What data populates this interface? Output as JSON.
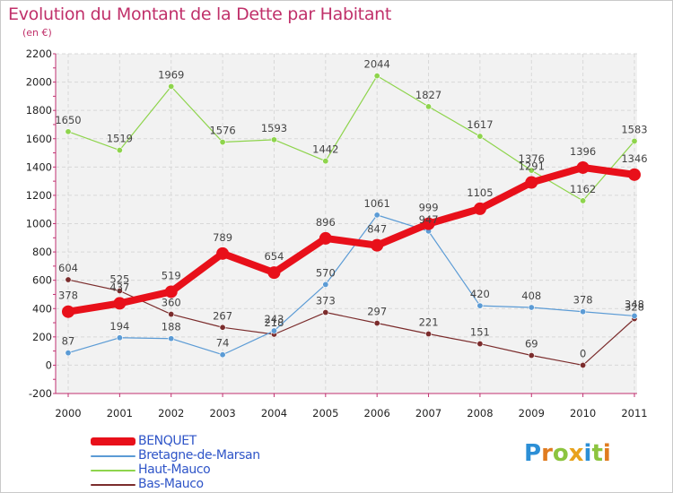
{
  "header": {
    "title": "Evolution du Montant de la Dette par Habitant",
    "subtitle": "(en €)"
  },
  "logo": {
    "letters": [
      {
        "char": "P",
        "color": "#2c8fd6"
      },
      {
        "char": "r",
        "color": "#e07b1f"
      },
      {
        "char": "o",
        "color": "#8cc43f"
      },
      {
        "char": "x",
        "color": "#e8a21c"
      },
      {
        "char": "i",
        "color": "#2c8fd6"
      },
      {
        "char": "t",
        "color": "#8cc43f"
      },
      {
        "char": "i",
        "color": "#e07b1f"
      }
    ]
  },
  "chart_data": {
    "type": "line",
    "title": "Evolution du Montant de la Dette par Habitant",
    "subtitle": "(en €)",
    "xlabel": "",
    "ylabel": "",
    "categories": [
      "2000",
      "2001",
      "2002",
      "2003",
      "2004",
      "2005",
      "2006",
      "2007",
      "2008",
      "2009",
      "2010",
      "2011"
    ],
    "ylim": [
      -200,
      2200
    ],
    "yticks": [
      -200,
      0,
      200,
      400,
      600,
      800,
      1000,
      1200,
      1400,
      1600,
      1800,
      2000,
      2200
    ],
    "grid": true,
    "legend_position": "bottom-left",
    "series": [
      {
        "name": "BENQUET",
        "color": "#e8101a",
        "values": [
          378,
          437,
          519,
          789,
          654,
          896,
          847,
          999,
          1105,
          1291,
          1396,
          1346
        ]
      },
      {
        "name": "Bretagne-de-Marsan",
        "color": "#5b9bd5",
        "values": [
          87,
          194,
          188,
          74,
          243,
          570,
          1061,
          947,
          420,
          408,
          378,
          348
        ]
      },
      {
        "name": "Haut-Mauco",
        "color": "#8ed44c",
        "values": [
          1650,
          1519,
          1969,
          1576,
          1593,
          1442,
          2044,
          1827,
          1617,
          1376,
          1162,
          1583
        ]
      },
      {
        "name": "Bas-Mauco",
        "color": "#7b2c2c",
        "values": [
          604,
          525,
          360,
          267,
          218,
          373,
          297,
          221,
          151,
          69,
          0,
          328
        ]
      }
    ]
  }
}
